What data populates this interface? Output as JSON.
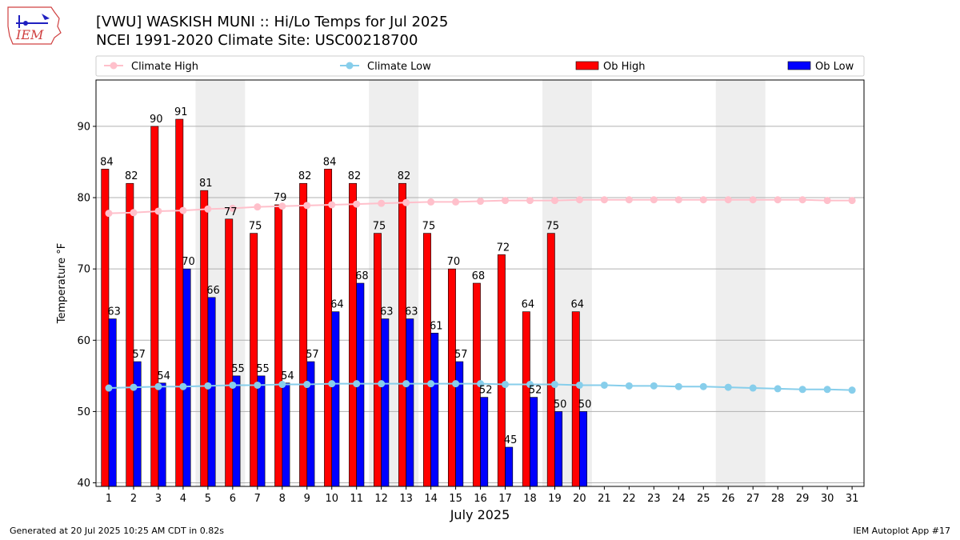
{
  "header": {
    "title_line1": "[VWU] WASKISH MUNI :: Hi/Lo Temps for Jul 2025",
    "title_line2": "NCEI 1991-2020 Climate Site: USC00218700",
    "logo_text": "IEM"
  },
  "footer": {
    "left": "Generated at 20 Jul 2025 10:25 AM CDT in 0.82s",
    "right": "IEM Autoplot App #17"
  },
  "chart_data": {
    "type": "bar",
    "xlabel": "July 2025",
    "ylabel": "Temperature °F",
    "ylim": [
      39.5,
      96.5
    ],
    "yticks": [
      40,
      50,
      60,
      70,
      80,
      90
    ],
    "grid": "horizontal",
    "legend_position": "top",
    "days": [
      1,
      2,
      3,
      4,
      5,
      6,
      7,
      8,
      9,
      10,
      11,
      12,
      13,
      14,
      15,
      16,
      17,
      18,
      19,
      20,
      21,
      22,
      23,
      24,
      25,
      26,
      27,
      28,
      29,
      30,
      31
    ],
    "weekend_shaded_days": [
      [
        5,
        6
      ],
      [
        12,
        13
      ],
      [
        19,
        20
      ],
      [
        26,
        27
      ]
    ],
    "series": [
      {
        "name": "Climate High",
        "kind": "line",
        "color": "#ffc0cb",
        "values": [
          77.8,
          77.9,
          78.1,
          78.2,
          78.4,
          78.5,
          78.7,
          78.8,
          78.9,
          79.0,
          79.1,
          79.2,
          79.3,
          79.4,
          79.4,
          79.5,
          79.6,
          79.6,
          79.6,
          79.7,
          79.7,
          79.7,
          79.7,
          79.7,
          79.7,
          79.7,
          79.7,
          79.7,
          79.7,
          79.6,
          79.6
        ]
      },
      {
        "name": "Climate Low",
        "kind": "line",
        "color": "#87ceeb",
        "values": [
          53.3,
          53.4,
          53.5,
          53.5,
          53.6,
          53.7,
          53.7,
          53.8,
          53.8,
          53.9,
          53.9,
          53.9,
          53.9,
          53.9,
          53.9,
          53.9,
          53.8,
          53.8,
          53.8,
          53.7,
          53.7,
          53.6,
          53.6,
          53.5,
          53.5,
          53.4,
          53.3,
          53.2,
          53.1,
          53.1,
          53.0
        ]
      },
      {
        "name": "Ob High",
        "kind": "bar",
        "color": "#ff0000",
        "values": [
          84,
          82,
          90,
          91,
          81,
          77,
          75,
          79,
          82,
          84,
          82,
          75,
          82,
          75,
          70,
          68,
          72,
          64,
          75,
          64
        ]
      },
      {
        "name": "Ob Low",
        "kind": "bar",
        "color": "#0000ff",
        "values": [
          63,
          57,
          54,
          70,
          66,
          55,
          55,
          54,
          57,
          64,
          68,
          63,
          63,
          61,
          57,
          52,
          45,
          52,
          50,
          50
        ]
      }
    ]
  }
}
